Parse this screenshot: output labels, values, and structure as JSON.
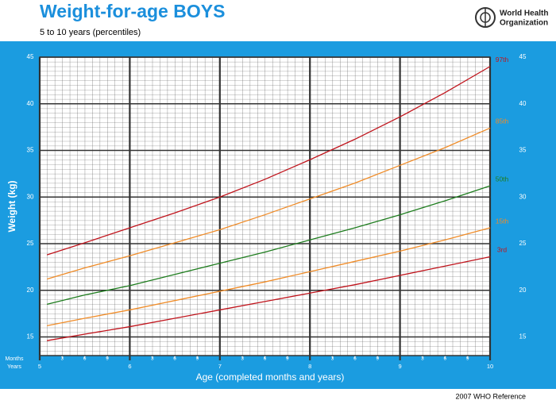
{
  "chart_data": {
    "type": "line",
    "title": "Weight-for-age  BOYS",
    "subtitle": "5 to 10 years (percentiles)",
    "organization": [
      "World Health",
      "Organization"
    ],
    "xlabel": "Age (completed months and years)",
    "ylabel": "Weight (kg)",
    "months_label": "Months",
    "years_label": "Years",
    "footnote": "2007 WHO Reference",
    "xlim": [
      5,
      10
    ],
    "ylim": [
      13,
      45
    ],
    "xticks": [
      5,
      6,
      7,
      8,
      9,
      10
    ],
    "month_ticks": [
      {
        "value": 5.25,
        "label": "3"
      },
      {
        "value": 5.5,
        "label": "6"
      },
      {
        "value": 5.75,
        "label": "9"
      },
      {
        "value": 6.25,
        "label": "3"
      },
      {
        "value": 6.5,
        "label": "6"
      },
      {
        "value": 6.75,
        "label": "9"
      },
      {
        "value": 7.25,
        "label": "3"
      },
      {
        "value": 7.5,
        "label": "6"
      },
      {
        "value": 7.75,
        "label": "9"
      },
      {
        "value": 8.25,
        "label": "3"
      },
      {
        "value": 8.5,
        "label": "6"
      },
      {
        "value": 8.75,
        "label": "9"
      },
      {
        "value": 9.25,
        "label": "3"
      },
      {
        "value": 9.5,
        "label": "6"
      },
      {
        "value": 9.75,
        "label": "9"
      }
    ],
    "yticks": [
      15,
      20,
      25,
      30,
      35,
      40,
      45
    ],
    "grid": true,
    "x": [
      5.08,
      5.5,
      6,
      6.5,
      7,
      7.5,
      8,
      8.5,
      9,
      9.5,
      10
    ],
    "series": [
      {
        "name": "97th",
        "color": "#c0141c",
        "values": [
          23.8,
          25.1,
          26.7,
          28.3,
          30.0,
          31.9,
          34.0,
          36.2,
          38.6,
          41.2,
          44.0
        ]
      },
      {
        "name": "85th",
        "color": "#f08c28",
        "values": [
          21.2,
          22.4,
          23.7,
          25.1,
          26.5,
          28.1,
          29.8,
          31.5,
          33.4,
          35.3,
          37.4
        ]
      },
      {
        "name": "50th",
        "color": "#1e7d1e",
        "values": [
          18.5,
          19.5,
          20.5,
          21.7,
          22.9,
          24.1,
          25.4,
          26.7,
          28.1,
          29.6,
          31.2
        ]
      },
      {
        "name": "15th",
        "color": "#f08c28",
        "values": [
          16.2,
          17.0,
          17.9,
          18.9,
          19.9,
          20.9,
          22.0,
          23.1,
          24.2,
          25.4,
          26.7
        ]
      },
      {
        "name": "3rd",
        "color": "#c0141c",
        "values": [
          14.6,
          15.3,
          16.1,
          17.0,
          17.9,
          18.8,
          19.7,
          20.6,
          21.6,
          22.6,
          23.6
        ]
      }
    ]
  }
}
